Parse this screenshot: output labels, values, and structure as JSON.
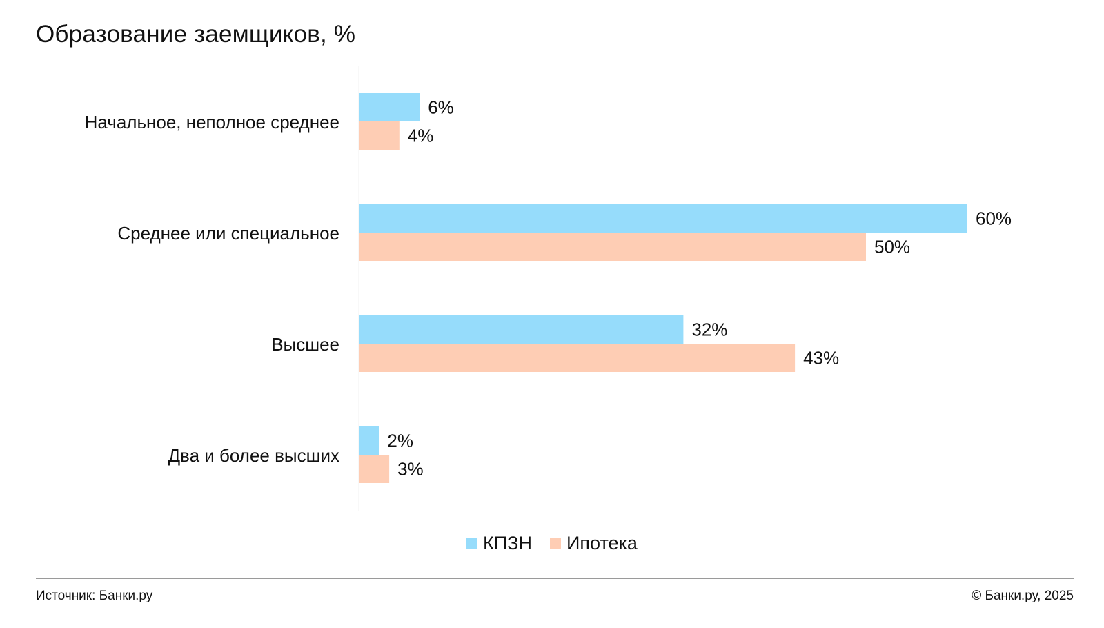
{
  "title": "Образование заемщиков, %",
  "chart_data": {
    "type": "bar",
    "orientation": "horizontal",
    "title": "Образование заемщиков, %",
    "categories": [
      "Начальное, неполное среднее",
      "Среднее или специальное",
      "Высшее",
      "Два и более высших"
    ],
    "series": [
      {
        "name": "КПЗН",
        "color": "#96dcfb",
        "values": [
          6,
          60,
          32,
          2
        ]
      },
      {
        "name": "Ипотека",
        "color": "#fecdb4",
        "values": [
          4,
          50,
          43,
          3
        ]
      }
    ],
    "value_suffix": "%",
    "xlim": [
      0,
      100
    ],
    "grid": false,
    "legend_position": "bottom-center"
  },
  "footer": {
    "source": "Источник: Банки.ру",
    "copyright": "© Банки.ру, 2025"
  }
}
